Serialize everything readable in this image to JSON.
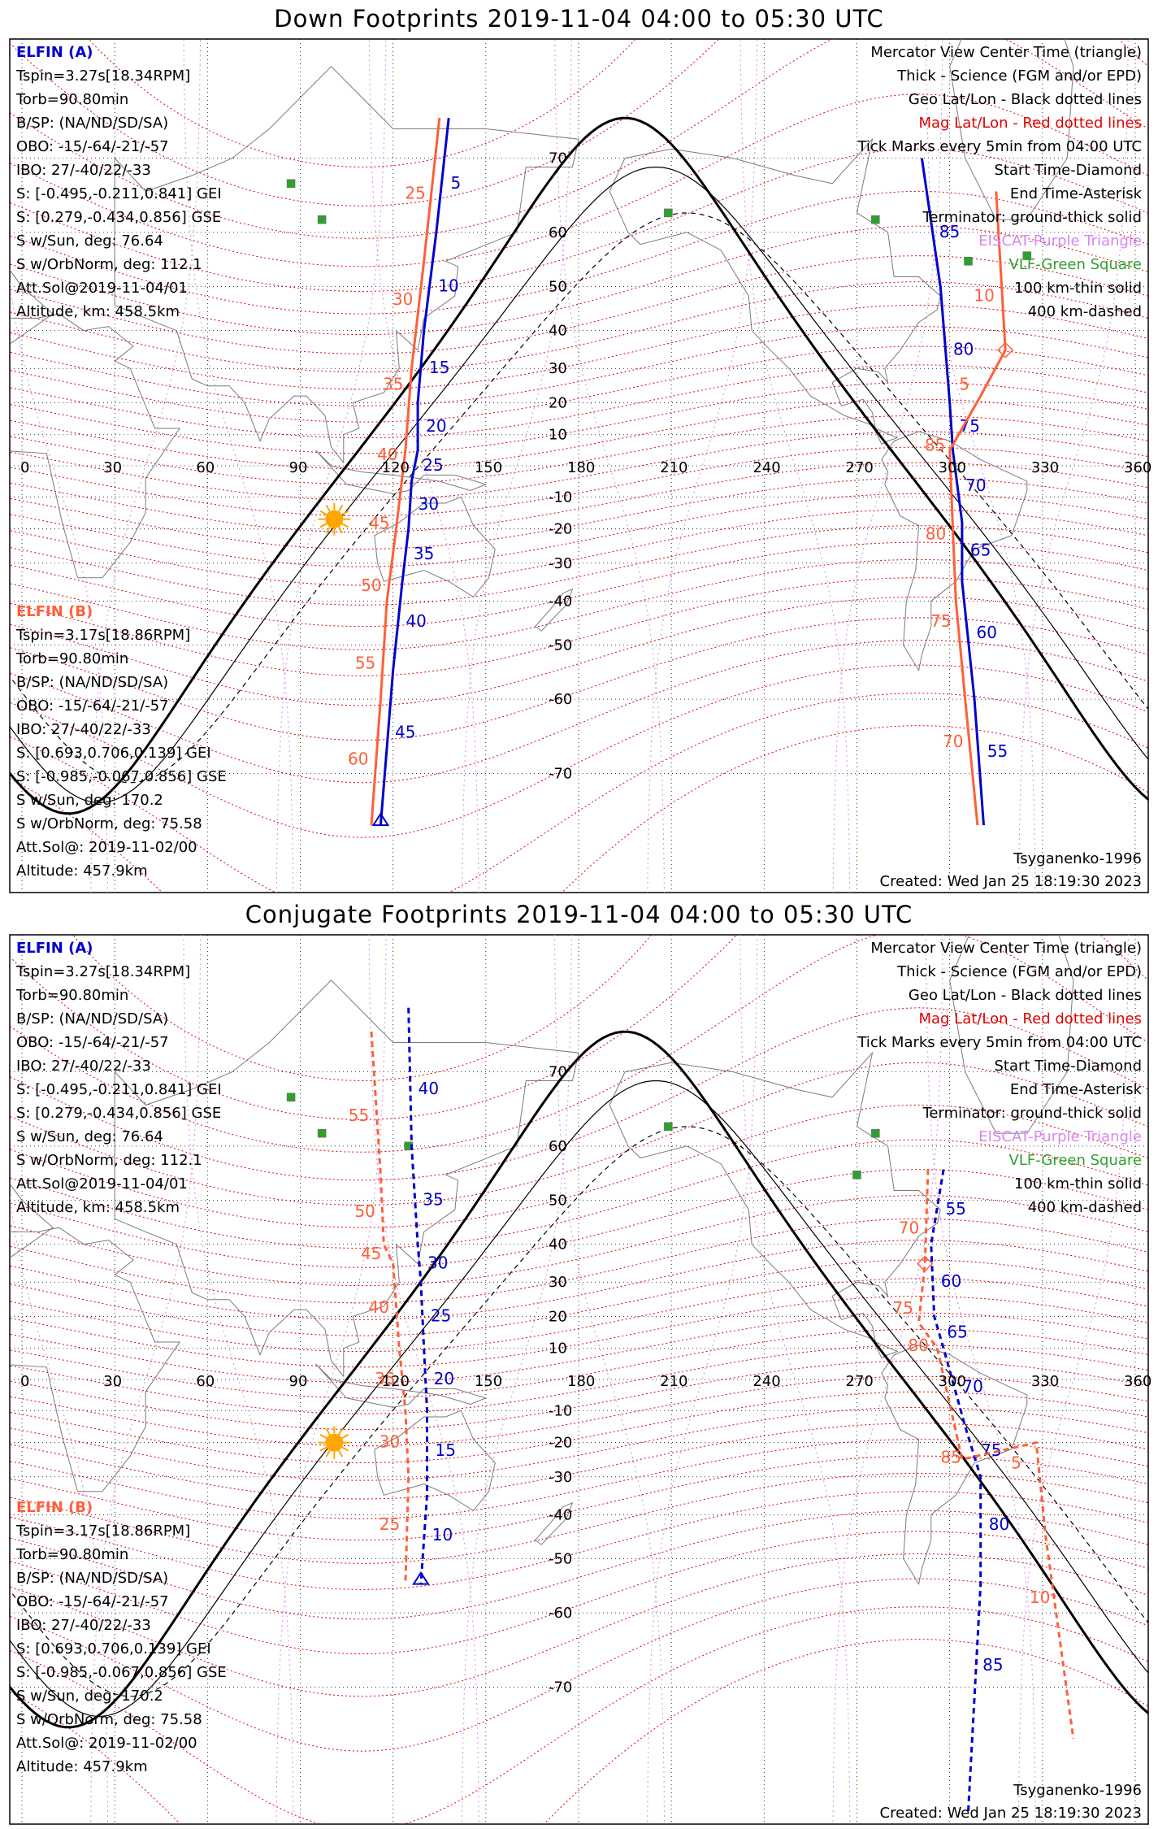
{
  "colors": {
    "elfin_a": "#0000cc",
    "elfin_b": "#ff5f3a",
    "mag_grid": "#e00000",
    "eiscat": "#d787f0",
    "vlf": "#2fa02f",
    "sun": "#ffa500",
    "terminator": "#000000"
  },
  "panels": [
    {
      "id": "down",
      "title": "Down Footprints 2019-11-04 04:00 to 05:30 UTC",
      "legend": [
        "Mercator View Center Time (triangle)",
        "Thick - Science (FGM and/or EPD)",
        "Geo Lat/Lon - Black dotted lines",
        "Mag Lat/Lon - Red dotted lines",
        "Tick Marks every 5min from 04:00 UTC",
        "Start Time-Diamond",
        "End Time-Asterisk",
        "Terminator: ground-thick solid",
        "EISCAT-Purple Triangle",
        "VLF-Green Square",
        "100 km-thin solid",
        "400 km-dashed"
      ],
      "footer_right": [
        "Tsyganenko-1996",
        "Created: Wed Jan 25 18:19:30 2023"
      ]
    },
    {
      "id": "conjugate",
      "title": "Conjugate Footprints 2019-11-04 04:00 to 05:30 UTC",
      "legend": [
        "Mercator View Center Time (triangle)",
        "Thick - Science (FGM and/or EPD)",
        "Geo Lat/Lon - Black dotted lines",
        "Mag Lat/Lon - Red dotted lines",
        "Tick Marks every 5min from 04:00 UTC",
        "Start Time-Diamond",
        "End Time-Asterisk",
        "Terminator: ground-thick solid",
        "EISCAT-Purple Triangle",
        "VLF-Green Square",
        "100 km-thin solid",
        "400 km-dashed"
      ],
      "footer_right": [
        "Tsyganenko-1996",
        "Created: Wed Jan 25 18:19:30 2023"
      ]
    }
  ],
  "elfin_a": {
    "name": "ELFIN (A)",
    "lines": [
      "Tspin=3.27s[18.34RPM]",
      "Torb=90.80min",
      "B/SP: (NA/ND/SD/SA)",
      "OBO: -15/-64/-21/-57",
      "IBO: 27/-40/22/-33",
      "S: [-0.495,-0.211,0.841] GEI",
      "S: [0.279,-0.434,0.856] GSE",
      "S w/Sun, deg: 76.64",
      "S w/OrbNorm, deg: 112.1",
      "Att.Sol@2019-11-04/01",
      "Altitude, km: 458.5km"
    ]
  },
  "elfin_b": {
    "name": "ELFIN (B)",
    "lines": [
      "Tspin=3.17s[18.86RPM]",
      "Torb=90.80min",
      "B/SP: (NA/ND/SD/SA)",
      "OBO: -15/-64/-21/-57",
      "IBO: 27/-40/22/-33",
      "S: [0.693,0.706,0.139] GEI",
      "S: [-0.985,-0.067,0.856] GSE",
      "S w/Sun, deg: 170.2",
      "S w/OrbNorm, deg: 75.58",
      "Att.Sol@: 2019-11-02/00",
      "Altitude: 457.9km"
    ]
  },
  "chart_data": [
    {
      "type": "scatter",
      "title": "Down Footprints 2019-11-04 04:00 to 05:30 UTC",
      "xlim": [
        0,
        360
      ],
      "ylim": [
        -80,
        80
      ],
      "x_ticks": [
        0,
        30,
        60,
        90,
        120,
        150,
        180,
        210,
        240,
        270,
        300,
        330,
        360
      ],
      "lat_ticks": [
        70,
        60,
        50,
        40,
        30,
        20,
        10,
        -10,
        -20,
        -30,
        -40,
        -50,
        -60,
        -70
      ],
      "grid": true,
      "series": [
        {
          "name": "ELFIN (A)",
          "style": "solid",
          "x": [
            138,
            134,
            130,
            128,
            128,
            126,
            125,
            123,
            120,
            116
          ],
          "y": [
            74,
            60,
            40,
            20,
            5,
            -5,
            -20,
            -35,
            -55,
            -75
          ],
          "tick_labels": [
            "5",
            "10",
            "15",
            "20",
            "25",
            "30",
            "35",
            "40",
            "45"
          ]
        },
        {
          "name": "ELFIN (B)",
          "style": "solid",
          "x": [
            135,
            130,
            126,
            124,
            121,
            118,
            116,
            113
          ],
          "y": [
            74,
            55,
            30,
            5,
            -20,
            -40,
            -60,
            -75
          ],
          "tick_labels": [
            "25",
            "30",
            "35",
            "40",
            "45",
            "50",
            "55",
            "60"
          ]
        },
        {
          "name": "ELFIN (A)",
          "style": "solid",
          "x": [
            291,
            297,
            300,
            301,
            304,
            304,
            308,
            311
          ],
          "y": [
            70,
            50,
            20,
            5,
            -18,
            -35,
            -60,
            -75
          ],
          "tick_labels": [
            "85",
            "80",
            "75",
            "70",
            "65",
            "60",
            "55"
          ]
        },
        {
          "name": "ELFIN (B)",
          "style": "solid",
          "x": [
            315,
            318,
            310,
            300,
            301,
            302,
            305,
            309
          ],
          "y": [
            66,
            35,
            22,
            5,
            -20,
            -40,
            -60,
            -75
          ],
          "tick_labels": [
            "10",
            "5",
            "85",
            "80",
            "75",
            "70"
          ]
        }
      ],
      "sun": {
        "lon": 101,
        "lat": -17
      },
      "vlf_sites": [
        [
          87,
          67
        ],
        [
          97,
          62
        ],
        [
          209,
          63
        ],
        [
          276,
          62
        ],
        [
          325,
          56
        ],
        [
          306,
          55
        ]
      ]
    },
    {
      "type": "scatter",
      "title": "Conjugate Footprints 2019-11-04 04:00 to 05:30 UTC",
      "xlim": [
        0,
        360
      ],
      "ylim": [
        -80,
        80
      ],
      "x_ticks": [
        0,
        30,
        60,
        90,
        120,
        150,
        180,
        210,
        240,
        270,
        300,
        330,
        360
      ],
      "lat_ticks": [
        70,
        60,
        50,
        40,
        30,
        20,
        10,
        -10,
        -20,
        -30,
        -40,
        -50,
        -60,
        -70
      ],
      "grid": true,
      "series": [
        {
          "name": "ELFIN (A)",
          "style": "dashed",
          "x": [
            125,
            126,
            128,
            129,
            130,
            131,
            131,
            129
          ],
          "y": [
            76,
            60,
            40,
            30,
            10,
            -10,
            -35,
            -55
          ],
          "tick_labels": [
            "40",
            "35",
            "30",
            "25",
            "20",
            "15",
            "10"
          ]
        },
        {
          "name": "ELFIN (B)",
          "style": "dashed",
          "x": [
            113,
            116,
            117,
            120,
            122,
            124,
            125,
            124
          ],
          "y": [
            74,
            55,
            40,
            35,
            10,
            -10,
            -30,
            -55
          ],
          "tick_labels": [
            "55",
            "50",
            "45",
            "40",
            "35",
            "30",
            "25"
          ]
        },
        {
          "name": "ELFIN (A)",
          "style": "dashed",
          "x": [
            298,
            294,
            295,
            298,
            305,
            310,
            310,
            306
          ],
          "y": [
            56,
            40,
            20,
            10,
            -15,
            -30,
            -55,
            -80
          ],
          "tick_labels": [
            "55",
            "60",
            "65",
            "70",
            "75",
            "80",
            "85"
          ]
        },
        {
          "name": "ELFIN (B)",
          "style": "dashed",
          "x": [
            293,
            292,
            290,
            296,
            304,
            328,
            331,
            340
          ],
          "y": [
            56,
            35,
            18,
            10,
            -25,
            -20,
            -45,
            -75
          ],
          "tick_labels": [
            "70",
            "75",
            "80",
            "85",
            "5",
            "10"
          ]
        }
      ],
      "sun": {
        "lon": 101,
        "lat": -20
      },
      "vlf_sites": [
        [
          87,
          67
        ],
        [
          97,
          62
        ],
        [
          125,
          60
        ],
        [
          209,
          63
        ],
        [
          276,
          62
        ],
        [
          270,
          55
        ]
      ]
    }
  ]
}
